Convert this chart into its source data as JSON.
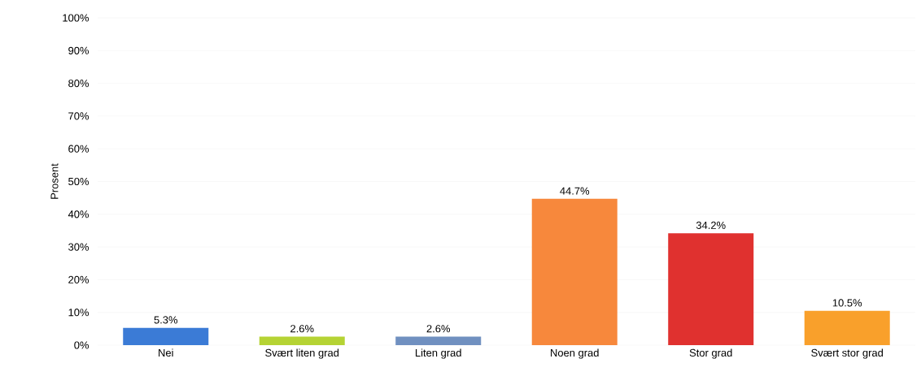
{
  "chart_data": {
    "type": "bar",
    "ylabel": "Prosent",
    "categories": [
      "Nei",
      "Svært liten grad",
      "Liten grad",
      "Noen grad",
      "Stor grad",
      "Svært stor grad"
    ],
    "values": [
      5.3,
      2.6,
      2.6,
      44.7,
      34.2,
      10.5
    ],
    "value_labels": [
      "5.3%",
      "2.6%",
      "2.6%",
      "44.7%",
      "34.2%",
      "10.5%"
    ],
    "colors": [
      "#3b7bd6",
      "#b5d334",
      "#7090c0",
      "#f7883c",
      "#e0312f",
      "#f9a02b"
    ],
    "ylim": [
      0,
      100
    ],
    "yticks": [
      {
        "value": 0,
        "label": "0%"
      },
      {
        "value": 10,
        "label": "10%"
      },
      {
        "value": 20,
        "label": "20%"
      },
      {
        "value": 30,
        "label": "30%"
      },
      {
        "value": 40,
        "label": "40%"
      },
      {
        "value": 50,
        "label": "50%"
      },
      {
        "value": 60,
        "label": "60%"
      },
      {
        "value": 70,
        "label": "70%"
      },
      {
        "value": 80,
        "label": "80%"
      },
      {
        "value": 90,
        "label": "90%"
      },
      {
        "value": 100,
        "label": "100%"
      }
    ],
    "grid": "y"
  }
}
